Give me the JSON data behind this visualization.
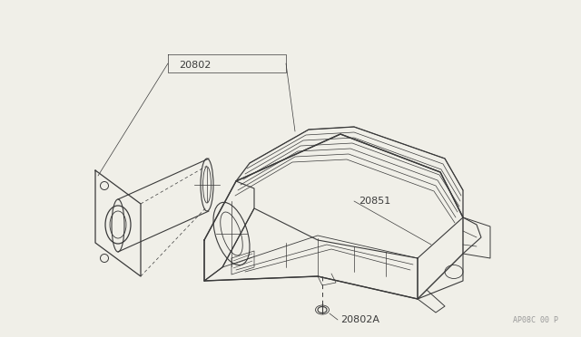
{
  "bg_color": "#f0efe8",
  "line_color": "#3a3a3a",
  "label_color": "#3a3a3a",
  "watermark_color": "#999999",
  "watermark_text": "AP08C 00 P",
  "fig_w": 6.4,
  "fig_h": 3.72,
  "dpi": 100
}
